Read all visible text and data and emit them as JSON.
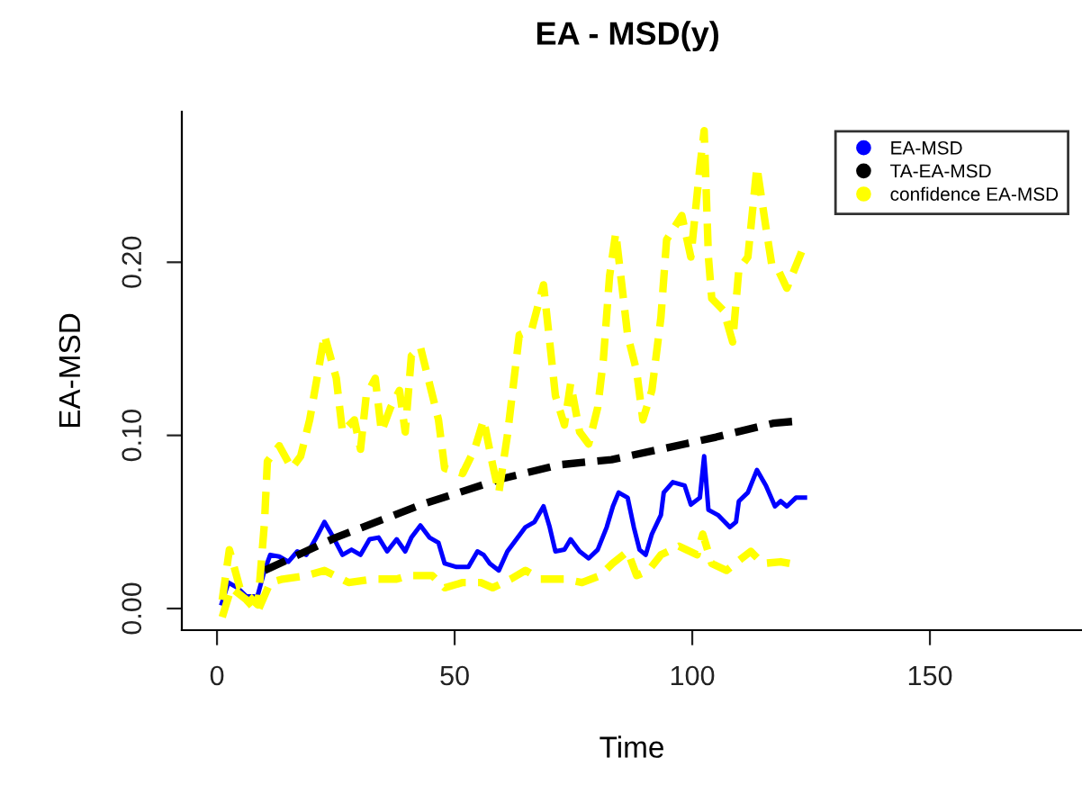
{
  "chart_data": {
    "type": "line",
    "title": "EA - MSD(y)",
    "xlabel": "Time",
    "ylabel": "EA-MSD",
    "xlim": [
      -7.4,
      182
    ],
    "ylim": [
      -0.0125,
      0.287
    ],
    "xticks": [
      0,
      50,
      100,
      150
    ],
    "yticks": [
      {
        "value": 0,
        "label": "0.00"
      },
      {
        "value": 0.1,
        "label": "0.10"
      },
      {
        "value": 0.2,
        "label": "0.20"
      }
    ],
    "grid": false,
    "legend": "top right",
    "series": [
      {
        "name": "EA-MSD",
        "color": "#0000ff",
        "line_style": "solid",
        "x": [
          1,
          2.4,
          4.3,
          6.2,
          8.5,
          10,
          11.2,
          13.1,
          15,
          16.9,
          18.8,
          20.7,
          22.6,
          24.5,
          26.4,
          28.3,
          30.2,
          32.1,
          34,
          35.8,
          37.8,
          39.6,
          40.9,
          42.8,
          44.7,
          46.6,
          47.9,
          50.4,
          52.9,
          54.8,
          56.1,
          57.4,
          59.3,
          61.1,
          63,
          64.9,
          66.8,
          68.7,
          70,
          71.2,
          73.1,
          74.4,
          76.3,
          78.2,
          80.1,
          82,
          83.3,
          84.5,
          86.4,
          87.7,
          88.9,
          90.2,
          91.5,
          93.4,
          94,
          95.9,
          98.4,
          99.7,
          101.6,
          102.5,
          103.4,
          105.4,
          107.9,
          109.2,
          109.8,
          111.7,
          113.6,
          115.5,
          117.4,
          118.6,
          119.9,
          121.8,
          123.7
        ],
        "values": [
          0.003,
          0.015,
          0.012,
          0.007,
          0.007,
          0.022,
          0.031,
          0.03,
          0.027,
          0.033,
          0.031,
          0.04,
          0.05,
          0.041,
          0.031,
          0.034,
          0.031,
          0.04,
          0.041,
          0.033,
          0.04,
          0.033,
          0.041,
          0.048,
          0.041,
          0.038,
          0.026,
          0.024,
          0.024,
          0.033,
          0.031,
          0.026,
          0.022,
          0.033,
          0.04,
          0.047,
          0.05,
          0.059,
          0.047,
          0.033,
          0.034,
          0.04,
          0.033,
          0.029,
          0.034,
          0.047,
          0.059,
          0.067,
          0.064,
          0.047,
          0.034,
          0.031,
          0.043,
          0.054,
          0.067,
          0.073,
          0.071,
          0.06,
          0.064,
          0.088,
          0.057,
          0.054,
          0.047,
          0.05,
          0.062,
          0.067,
          0.08,
          0.071,
          0.059,
          0.062,
          0.059,
          0.064,
          0.064
        ]
      },
      {
        "name": "TA-EA-MSD",
        "color": "#000000",
        "line_style": "dashed",
        "x": [
          10,
          25,
          43,
          60,
          72,
          83,
          95,
          105,
          117,
          121
        ],
        "values": [
          0.022,
          0.041,
          0.06,
          0.075,
          0.083,
          0.086,
          0.093,
          0.099,
          0.107,
          0.108
        ]
      },
      {
        "name": "confidence EA-MSD",
        "color": "#ffff00",
        "line_style": "dashed",
        "x": [
          1.1,
          2.6,
          4.8,
          8.6,
          10,
          10.6,
          13.1,
          15.7,
          17.6,
          19.5,
          21.3,
          22.6,
          25.1,
          26.4,
          28.9,
          30.2,
          31.4,
          33.3,
          34.6,
          36.5,
          38.4,
          39.6,
          40.9,
          42.8,
          44.7,
          46.6,
          47.9,
          51.7,
          54.2,
          56.1,
          58,
          59.3,
          61.1,
          63.6,
          66.2,
          68.7,
          70,
          71.2,
          73.1,
          74.4,
          76.3,
          78.2,
          80.1,
          81.3,
          82.6,
          83.9,
          86.4,
          88.3,
          89.6,
          91.5,
          93.4,
          94.6,
          97.8,
          99.7,
          101.6,
          102.5,
          103.4,
          104.1,
          106.6,
          108.5,
          109.8,
          111.7,
          113.6,
          115.5,
          116.7,
          118,
          119.9,
          123
        ],
        "values": [
          0.005,
          0.034,
          0.012,
          0.002,
          0.05,
          0.085,
          0.094,
          0.081,
          0.088,
          0.109,
          0.137,
          0.158,
          0.133,
          0.102,
          0.109,
          0.092,
          0.123,
          0.133,
          0.102,
          0.116,
          0.126,
          0.102,
          0.146,
          0.151,
          0.13,
          0.109,
          0.081,
          0.078,
          0.092,
          0.109,
          0.083,
          0.067,
          0.1,
          0.158,
          0.161,
          0.187,
          0.154,
          0.123,
          0.106,
          0.13,
          0.102,
          0.095,
          0.116,
          0.144,
          0.192,
          0.217,
          0.158,
          0.137,
          0.109,
          0.126,
          0.168,
          0.213,
          0.227,
          0.203,
          0.255,
          0.276,
          0.203,
          0.179,
          0.172,
          0.154,
          0.196,
          0.203,
          0.255,
          0.22,
          0.199,
          0.196,
          0.185,
          0.206
        ]
      },
      {
        "color": "#ffff00",
        "line_style": "dashed",
        "x": [
          1.1,
          3,
          6.2,
          8.5,
          11.2,
          13.8,
          18.8,
          22.6,
          27.7,
          32.7,
          37.8,
          40.3,
          45.3,
          47.9,
          51.7,
          55.5,
          58,
          61.8,
          64.9,
          68,
          73.1,
          76.8,
          80.6,
          83.2,
          86.4,
          88.3,
          90.8,
          93.4,
          97.2,
          101,
          102.2,
          104.1,
          107.2,
          110.4,
          112.3,
          114.8,
          118.6,
          120.5
        ],
        "values": [
          -0.005,
          0.012,
          0.005,
          -0.002,
          0.015,
          0.017,
          0.019,
          0.022,
          0.015,
          0.017,
          0.017,
          0.019,
          0.019,
          0.012,
          0.015,
          0.015,
          0.012,
          0.017,
          0.022,
          0.017,
          0.017,
          0.015,
          0.019,
          0.026,
          0.033,
          0.019,
          0.022,
          0.031,
          0.036,
          0.031,
          0.043,
          0.026,
          0.022,
          0.029,
          0.033,
          0.026,
          0.027,
          0.026
        ]
      }
    ]
  }
}
